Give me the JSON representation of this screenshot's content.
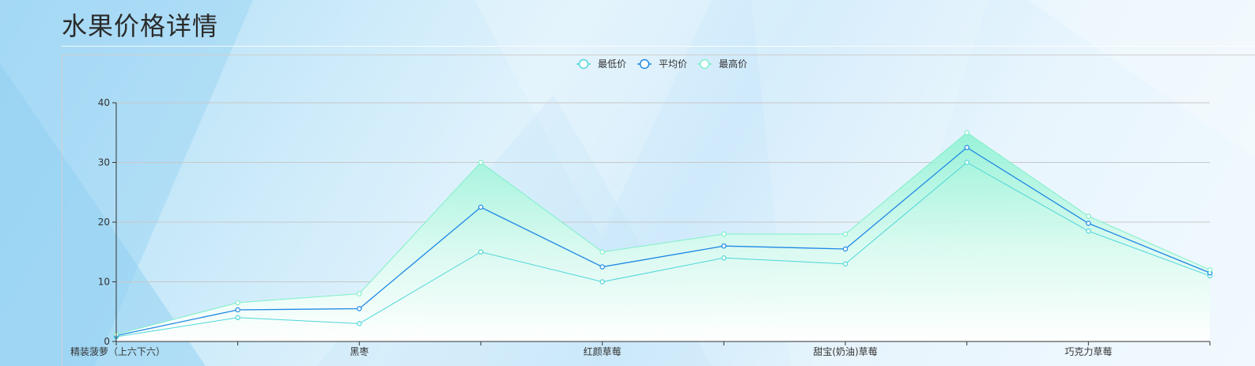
{
  "header": {
    "title": "水果价格详情"
  },
  "colors": {
    "min_line": "#4fd6d9",
    "avg_line": "#1e88e5",
    "max_line": "#7fefc8",
    "area_top": "#8ff2d4",
    "area_bottom": "#ffffff",
    "grid": "#c8c8c8",
    "axis": "#333333"
  },
  "chart_data": {
    "type": "line",
    "title": "",
    "xlabel": "",
    "ylabel": "",
    "ylim": [
      0,
      40
    ],
    "yticks": [
      0,
      10,
      20,
      30,
      40
    ],
    "grid": true,
    "legend": "top-center",
    "categories": [
      "精装菠萝（上六下六）",
      "",
      "黑枣",
      "",
      "红颜草莓",
      "",
      "甜宝(奶油)草莓",
      "",
      "巧克力草莓",
      ""
    ],
    "series": [
      {
        "name": "最低价",
        "values": [
          0.8,
          4,
          3,
          15,
          10,
          14,
          13,
          30,
          18.5,
          11
        ]
      },
      {
        "name": "平均价",
        "values": [
          1,
          5.3,
          5.5,
          22.5,
          12.5,
          16,
          15.5,
          32.5,
          19.8,
          11.5
        ]
      },
      {
        "name": "最高价",
        "values": [
          1.2,
          6.5,
          8,
          30,
          15,
          18,
          18,
          35,
          21,
          12
        ]
      }
    ]
  }
}
